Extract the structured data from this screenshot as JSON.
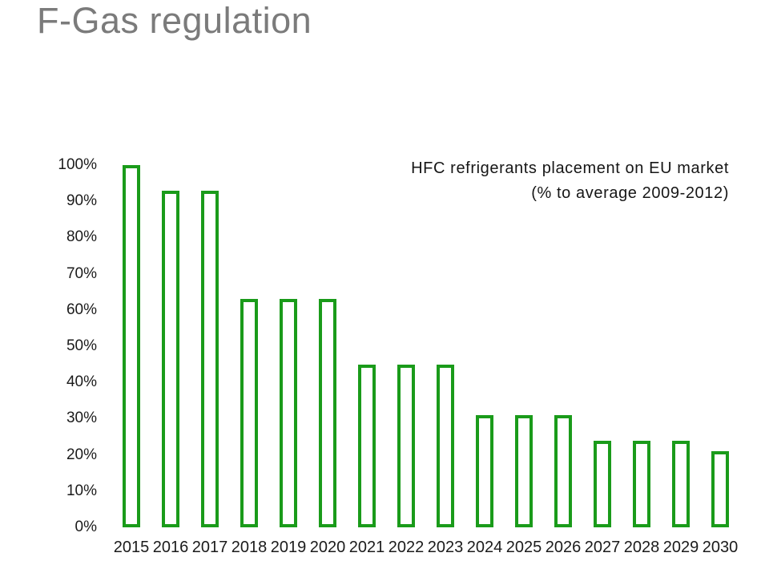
{
  "page_title": "F-Gas regulation",
  "colors": {
    "bar_outline": "#1a9b1a",
    "page_title_gray": "#7b7b7b",
    "axis_text": "#1b1b1b"
  },
  "chart_data": {
    "type": "bar",
    "title": "HFC refrigerants placement on EU market",
    "subtitle": "(% to average 2009-2012)",
    "categories": [
      "2015",
      "2016",
      "2017",
      "2018",
      "2019",
      "2020",
      "2021",
      "2022",
      "2023",
      "2024",
      "2025",
      "2026",
      "2027",
      "2028",
      "2029",
      "2030"
    ],
    "values": [
      100,
      93,
      93,
      63,
      63,
      63,
      45,
      45,
      45,
      31,
      31,
      31,
      24,
      24,
      24,
      21
    ],
    "xlabel": "",
    "ylabel": "",
    "ylim": [
      0,
      100
    ],
    "yticks": [
      0,
      10,
      20,
      30,
      40,
      50,
      60,
      70,
      80,
      90,
      100
    ],
    "ytick_suffix": "%",
    "bar_style": "outline",
    "bar_color": "#1a9b1a",
    "grid": false,
    "legend": false,
    "title_position": "top-right"
  }
}
